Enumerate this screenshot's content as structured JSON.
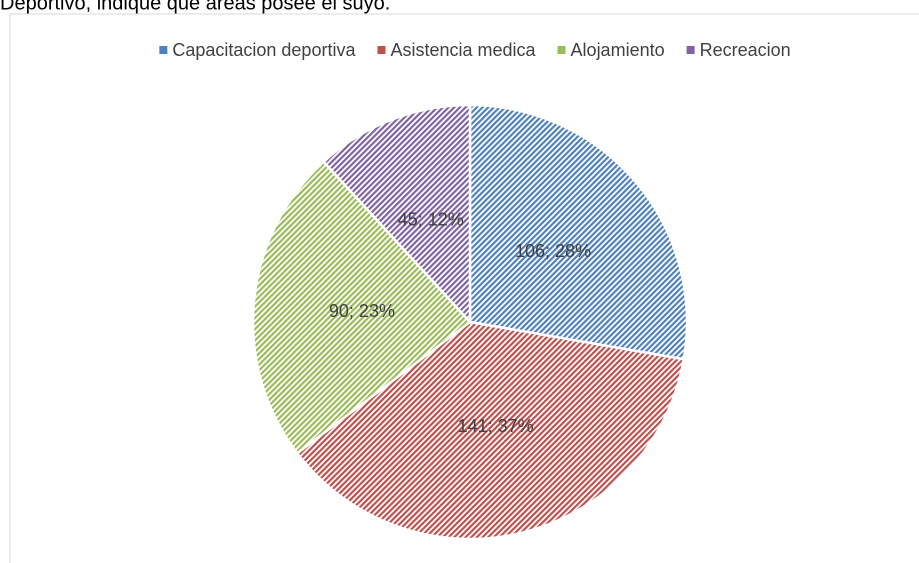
{
  "chart_data": {
    "type": "pie",
    "title": "Deportivo, indique que áreas posee el suyo.",
    "categories": [
      "Capacitacion deportiva",
      "Asistencia medica",
      "Alojamiento",
      "Recreacion"
    ],
    "values": [
      106,
      141,
      90,
      45
    ],
    "value_labels": [
      "106; 28%",
      "141; 37%",
      "90; 23%",
      "45; 12%"
    ],
    "colors": [
      "#4f81bd",
      "#c0504d",
      "#9bbb59",
      "#8064a2"
    ],
    "legend": "top"
  }
}
